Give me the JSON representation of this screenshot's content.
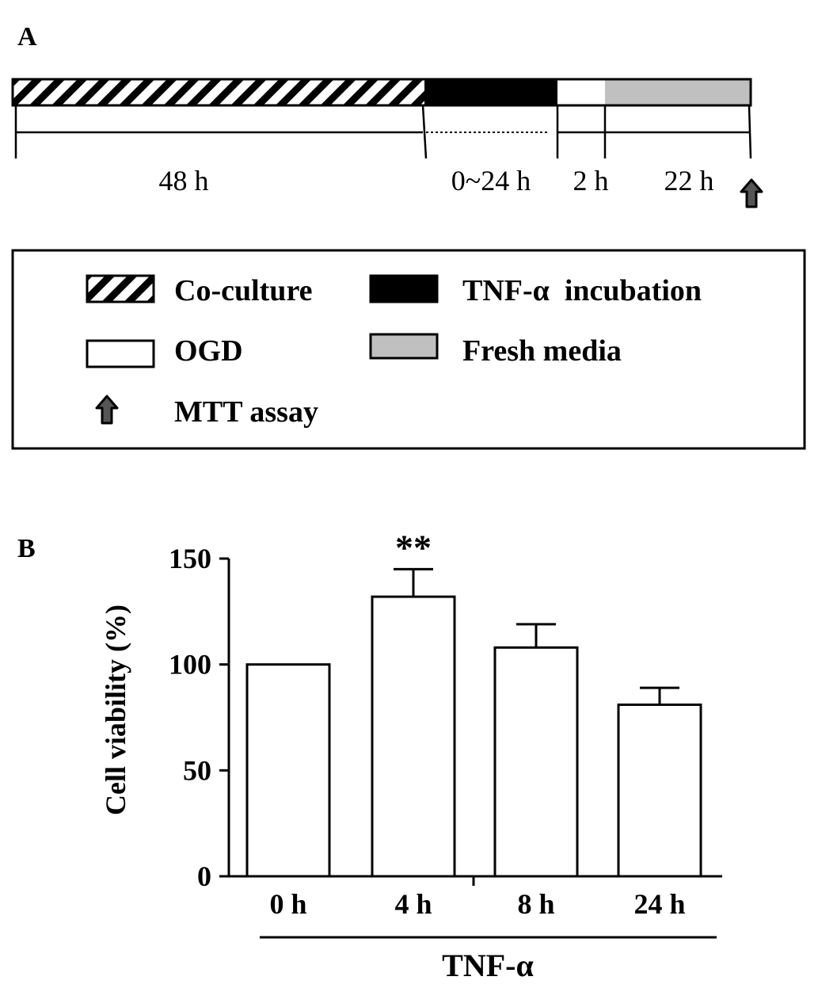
{
  "panel_a": {
    "label": "A",
    "segments": [
      {
        "name": "co-culture",
        "duration": "48 h"
      },
      {
        "name": "tnf-incubation",
        "duration": "0~24 h"
      },
      {
        "name": "ogd",
        "duration": "2 h"
      },
      {
        "name": "fresh-media",
        "duration": "22 h"
      }
    ],
    "legend": {
      "coculture": "Co-culture",
      "tnf_incubation": "TNF-α  incubation",
      "ogd": "OGD",
      "fresh_media": "Fresh media",
      "mtt": "MTT assay"
    },
    "colors": {
      "tnf": "#000000",
      "ogd": "#ffffff",
      "fresh": "#c0c0c0",
      "arrow": "#555555"
    }
  },
  "panel_b": {
    "label": "B",
    "group_label": "TNF-α"
  },
  "chart_data": {
    "type": "bar",
    "categories": [
      "0 h",
      "4 h",
      "8 h",
      "24 h"
    ],
    "values": [
      100,
      132,
      108,
      81
    ],
    "errors": [
      0,
      13,
      11,
      8
    ],
    "annotations": [
      {
        "category": "4 h",
        "text": "**"
      }
    ],
    "ylabel": "Cell viability (%)",
    "xlabel": "",
    "ylim": [
      0,
      150
    ],
    "yticks": [
      0,
      50,
      100,
      150
    ],
    "grid": false
  }
}
